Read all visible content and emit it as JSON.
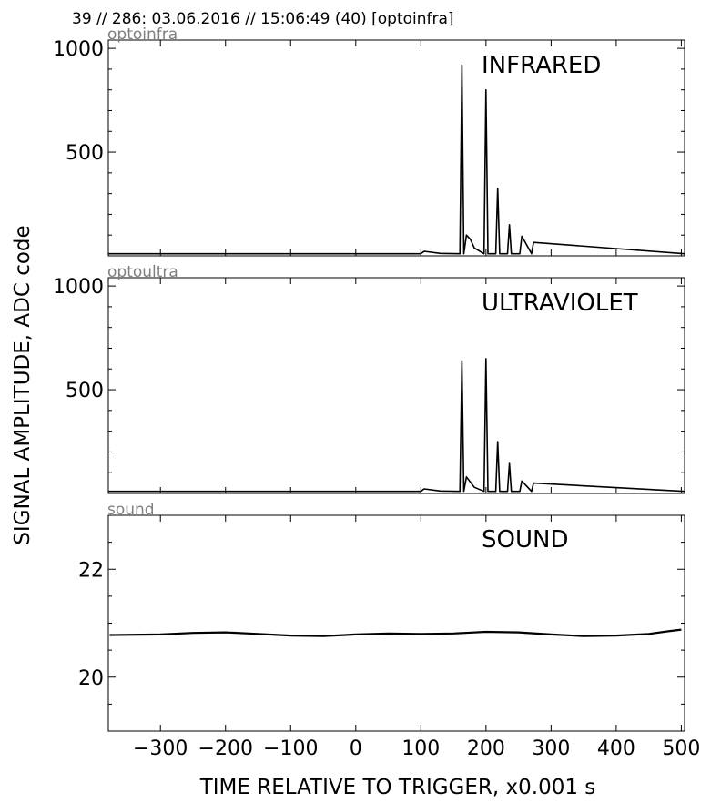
{
  "header": {
    "title": "39 // 286:   03.06.2016 // 15:06:49 (40)  [optoinfra]"
  },
  "figure": {
    "ylabel": "SIGNAL AMPLITUDE,  ADC code",
    "xlabel": "TIME RELATIVE TO TRIGGER,   x0.001 s"
  },
  "chart_data": [
    {
      "type": "line",
      "channel": "optoinfra",
      "label": "INFRARED",
      "xlim": [
        -380,
        505
      ],
      "ylim": [
        0,
        1040
      ],
      "yticks": [
        "500",
        "1000"
      ],
      "xticks": [
        "−300",
        "−200",
        "−100",
        "0",
        "100",
        "200",
        "300",
        "400",
        "500"
      ],
      "baseline": 10,
      "series": [
        {
          "x": [
            -380,
            100,
            105,
            130,
            160,
            163,
            166,
            170,
            176,
            182,
            197,
            200,
            203,
            215,
            218,
            221,
            233,
            236,
            239,
            252,
            255,
            270,
            273,
            505
          ],
          "y": [
            10,
            10,
            22,
            12,
            10,
            920,
            10,
            100,
            80,
            38,
            10,
            800,
            10,
            10,
            325,
            10,
            10,
            150,
            10,
            10,
            95,
            10,
            65,
            10
          ]
        }
      ]
    },
    {
      "type": "line",
      "channel": "optoultra",
      "label": "ULTRAVIOLET",
      "xlim": [
        -380,
        505
      ],
      "ylim": [
        0,
        1040
      ],
      "yticks": [
        "500",
        "1000"
      ],
      "xticks": [
        "−300",
        "−200",
        "−100",
        "0",
        "100",
        "200",
        "300",
        "400",
        "500"
      ],
      "baseline": 10,
      "series": [
        {
          "x": [
            -380,
            100,
            105,
            130,
            160,
            163,
            166,
            170,
            176,
            182,
            197,
            200,
            203,
            215,
            218,
            221,
            233,
            236,
            239,
            252,
            255,
            270,
            273,
            505
          ],
          "y": [
            10,
            10,
            22,
            12,
            10,
            640,
            10,
            80,
            55,
            30,
            10,
            650,
            10,
            10,
            250,
            10,
            10,
            145,
            10,
            10,
            60,
            10,
            50,
            10
          ]
        }
      ]
    },
    {
      "type": "line",
      "channel": "sound",
      "label": "SOUND",
      "xlim": [
        -380,
        505
      ],
      "ylim": [
        19,
        23
      ],
      "yticks": [
        "20",
        "22"
      ],
      "xticks": [
        "−300",
        "−200",
        "−100",
        "0",
        "100",
        "200",
        "300",
        "400",
        "500"
      ],
      "series": [
        {
          "x": [
            -378,
            -300,
            -250,
            -200,
            -150,
            -100,
            -50,
            0,
            50,
            100,
            150,
            200,
            250,
            300,
            350,
            400,
            450,
            480,
            500
          ],
          "y": [
            20.78,
            20.79,
            20.82,
            20.83,
            20.8,
            20.77,
            20.76,
            20.79,
            20.81,
            20.8,
            20.81,
            20.84,
            20.83,
            20.79,
            20.76,
            20.77,
            20.8,
            20.85,
            20.88
          ]
        }
      ]
    }
  ]
}
